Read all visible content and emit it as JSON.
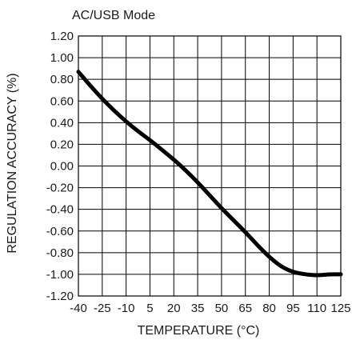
{
  "chart_data": {
    "type": "line",
    "title": "AC/USB Mode",
    "xlabel": "TEMPERATURE (°C)",
    "ylabel": "REGULATION ACCURACY (%)",
    "x_ticks": [
      -40,
      -25,
      -10,
      5,
      20,
      35,
      50,
      65,
      80,
      95,
      110,
      125
    ],
    "x_tick_labels": [
      "-40",
      "-25",
      "-10",
      "5",
      "20",
      "35",
      "50",
      "65",
      "80",
      "95",
      "110",
      "125"
    ],
    "y_ticks": [
      1.2,
      1.0,
      0.8,
      0.6,
      0.4,
      0.2,
      0.0,
      -0.2,
      -0.4,
      -0.6,
      -0.8,
      -1.0,
      -1.2
    ],
    "y_tick_labels": [
      "1.20",
      "1.00",
      "0.80",
      "0.60",
      "0.40",
      "0.20",
      "0.00",
      "-0.20",
      "-0.40",
      "-0.60",
      "-0.80",
      "-1.00",
      "-1.20"
    ],
    "xlim": [
      -40,
      125
    ],
    "ylim": [
      -1.2,
      1.2
    ],
    "grid": true,
    "series": [
      {
        "color": "#000000",
        "x": [
          -40,
          -32.5,
          -25,
          -17.5,
          -10,
          -2.5,
          5,
          12.5,
          20,
          27.5,
          35,
          42.5,
          50,
          57.5,
          65,
          72.5,
          80,
          87.5,
          95,
          102.5,
          110,
          117.5,
          125
        ],
        "y": [
          0.87,
          0.74,
          0.62,
          0.51,
          0.41,
          0.32,
          0.24,
          0.15,
          0.06,
          -0.04,
          -0.15,
          -0.27,
          -0.39,
          -0.5,
          -0.61,
          -0.73,
          -0.84,
          -0.93,
          -0.98,
          -1.0,
          -1.01,
          -1.0,
          -1.0
        ]
      }
    ]
  }
}
